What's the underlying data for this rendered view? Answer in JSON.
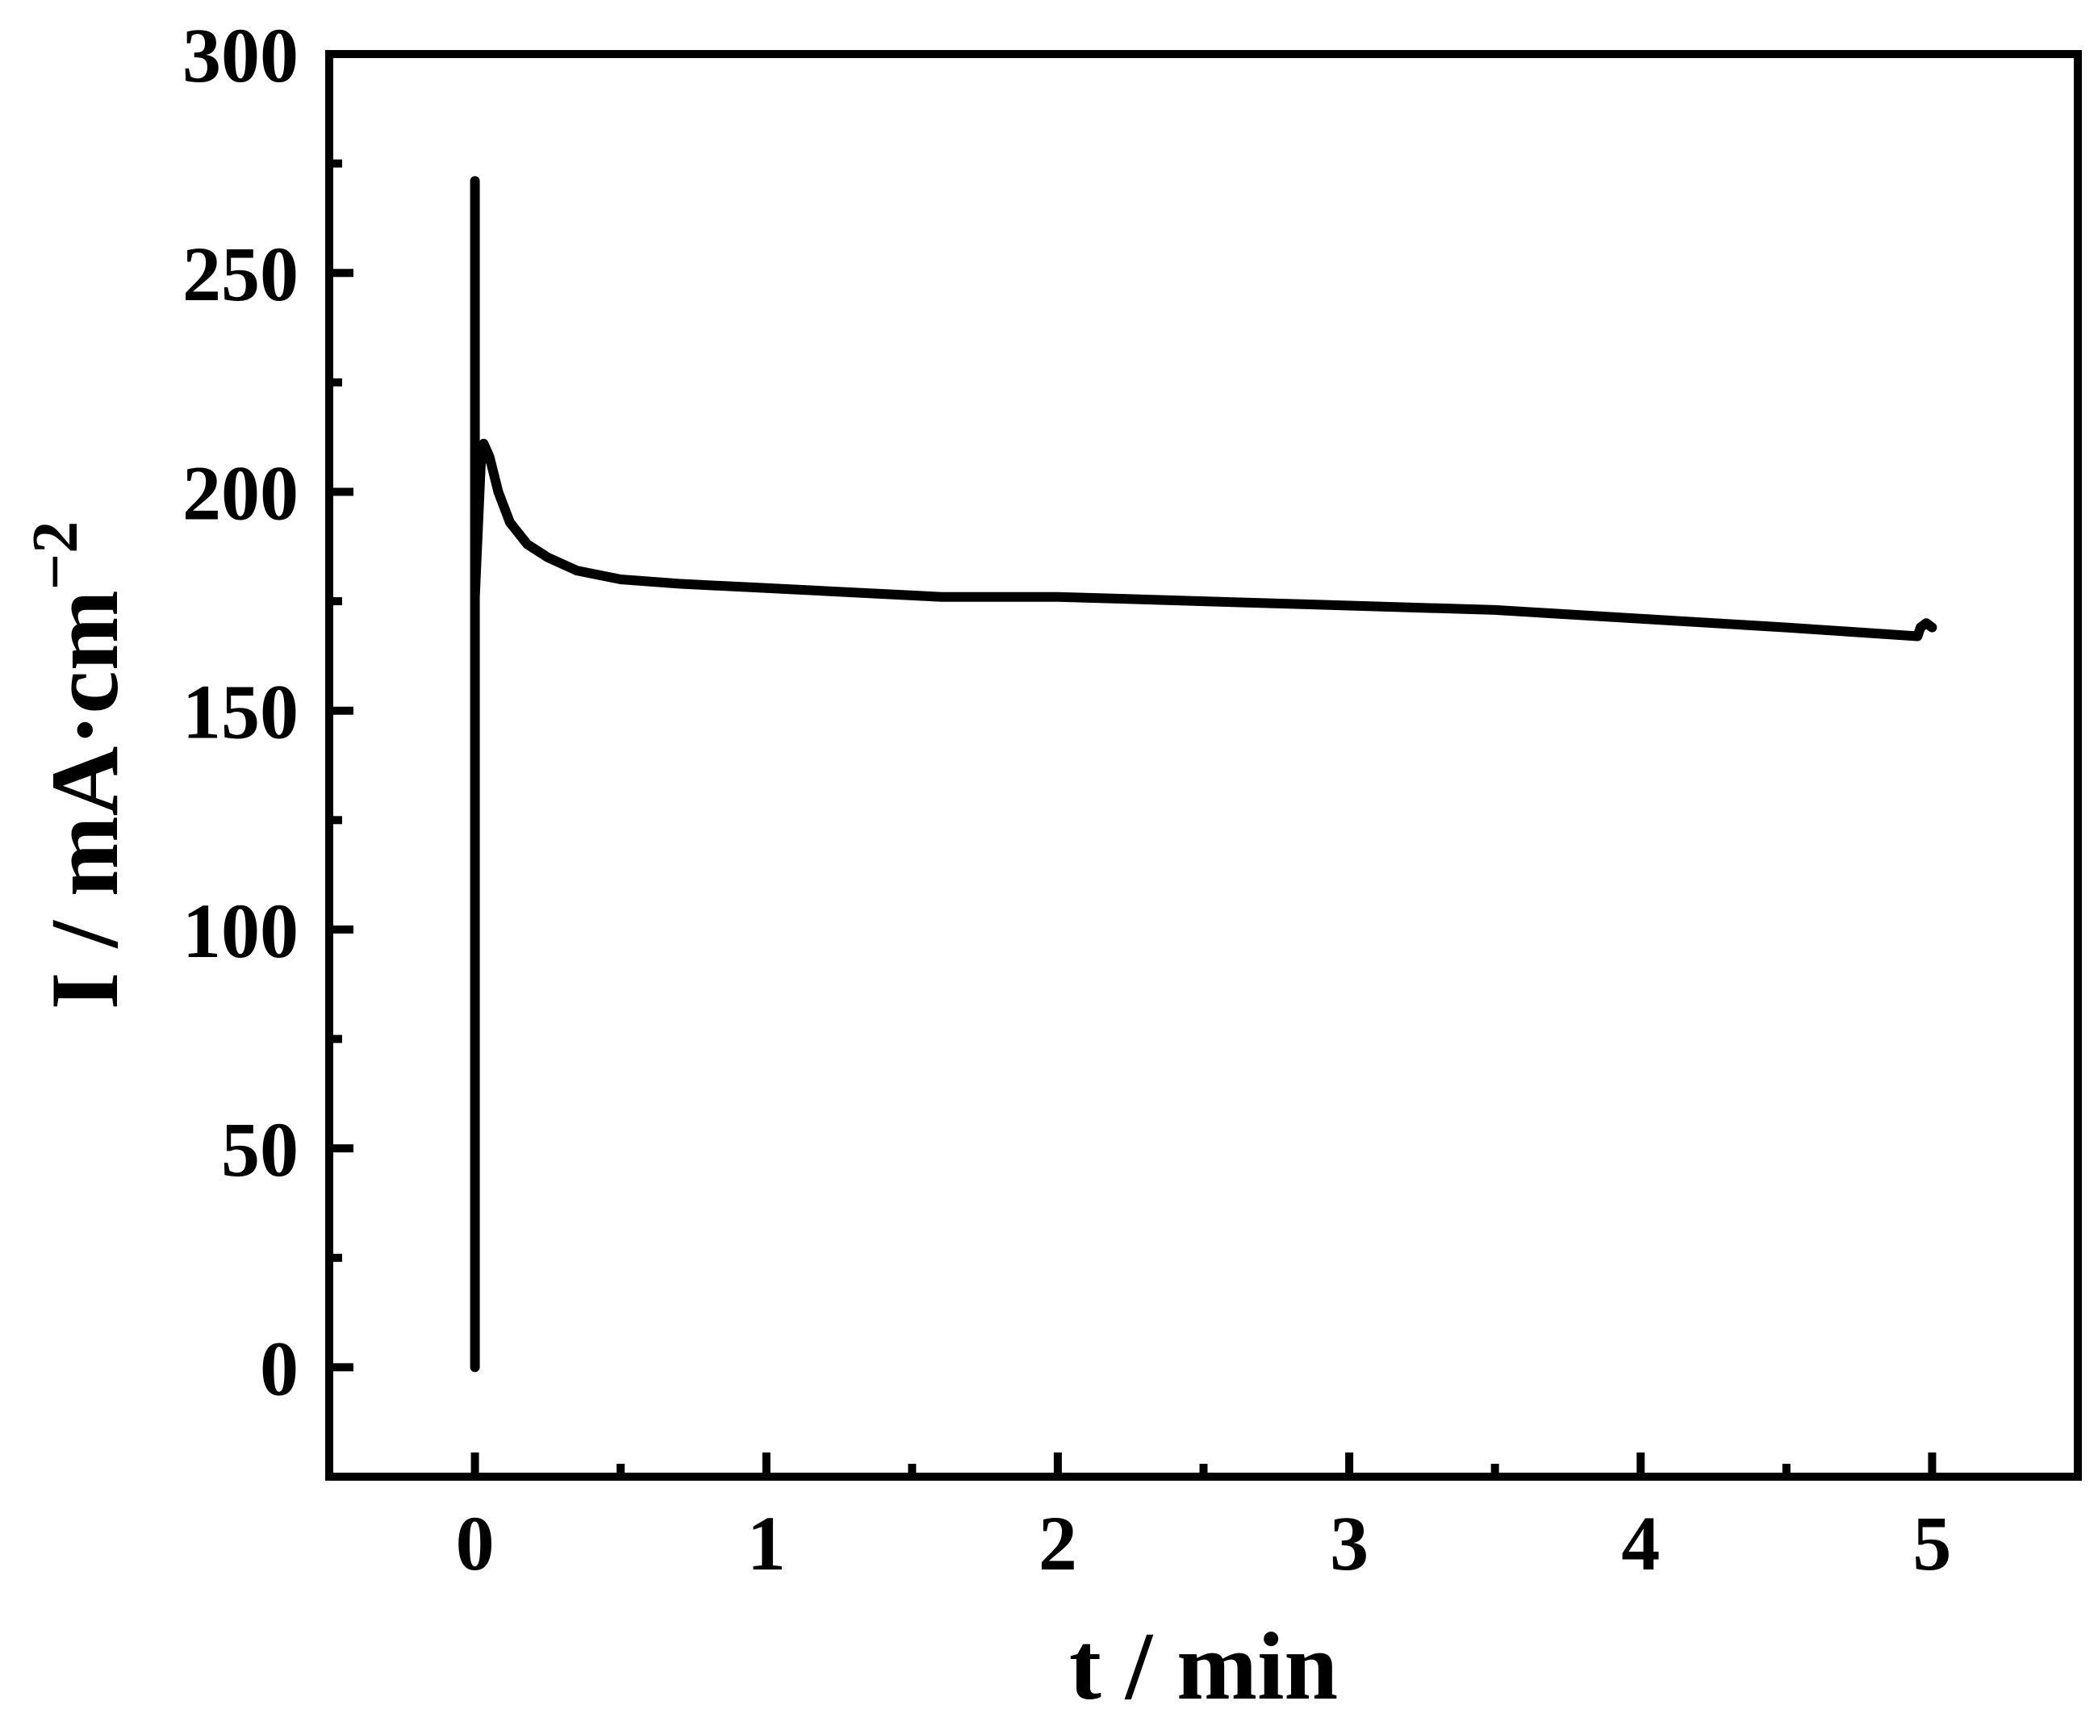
{
  "chart_data": {
    "type": "line",
    "title": "",
    "xlabel": "t / min",
    "ylabel": {
      "main": "I / mA·cm",
      "superscript": "−2"
    },
    "xlim": [
      -0.5,
      5.5
    ],
    "ylim": [
      -25,
      300
    ],
    "x_ticks": [
      0,
      1,
      2,
      3,
      4,
      5
    ],
    "x_tick_labels": [
      "0",
      "1",
      "2",
      "3",
      "4",
      "5"
    ],
    "y_ticks": [
      0,
      50,
      100,
      150,
      200,
      250,
      300
    ],
    "y_tick_labels": [
      "0",
      "50",
      "100",
      "150",
      "200",
      "250",
      "300"
    ],
    "grid": false,
    "legend": "none",
    "line_color": "#000000",
    "series": [
      {
        "x": [
          0,
          0,
          0,
          0.02,
          0.03,
          0.05,
          0.08,
          0.12,
          0.18,
          0.25,
          0.35,
          0.5,
          0.7,
          1.0,
          1.3,
          1.6,
          2.0,
          2.5,
          3.0,
          3.5,
          4.0,
          4.5,
          4.95,
          4.96,
          4.98,
          5.0
        ],
        "y": [
          0,
          271,
          176,
          206,
          211,
          208,
          200,
          193,
          188,
          185,
          182,
          180,
          179,
          178,
          177,
          176,
          176,
          175,
          174,
          173,
          171,
          169,
          167,
          169,
          170,
          169
        ]
      }
    ]
  }
}
